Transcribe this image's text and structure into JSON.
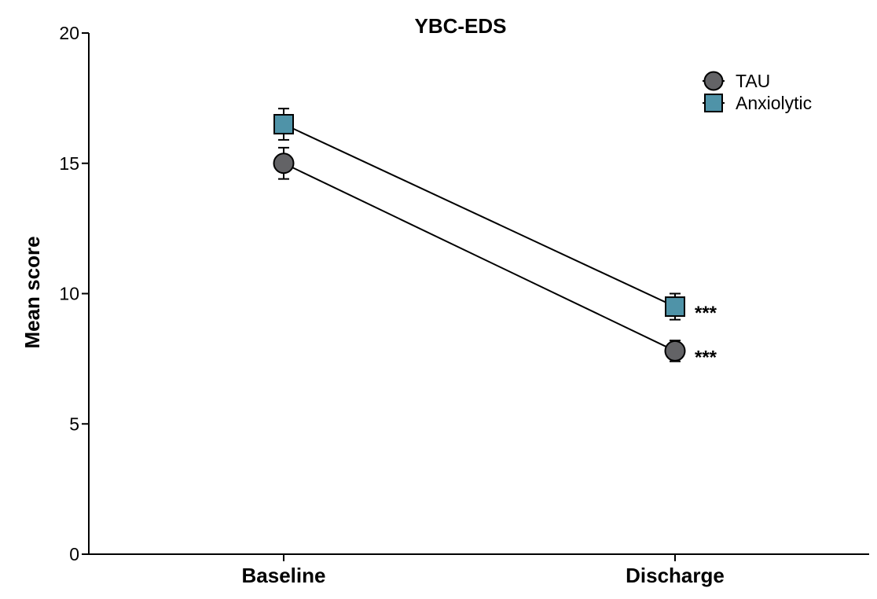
{
  "chart_data": {
    "type": "line",
    "title": "YBC-EDS",
    "xlabel": "",
    "ylabel": "Mean score",
    "categories": [
      "Baseline",
      "Discharge"
    ],
    "ylim": [
      0,
      20
    ],
    "yticks": [
      0,
      5,
      10,
      15,
      20
    ],
    "grid": false,
    "legend_position": "top-right",
    "series": [
      {
        "name": "TAU",
        "marker": "circle",
        "color": "#636366",
        "values": [
          15.0,
          7.8
        ],
        "error": [
          0.6,
          0.4
        ],
        "annotations": [
          "",
          "***"
        ]
      },
      {
        "name": "Anxiolytic",
        "marker": "square",
        "color": "#4f93a8",
        "values": [
          16.5,
          9.5
        ],
        "error": [
          0.6,
          0.5
        ],
        "annotations": [
          "",
          "***"
        ]
      }
    ]
  }
}
